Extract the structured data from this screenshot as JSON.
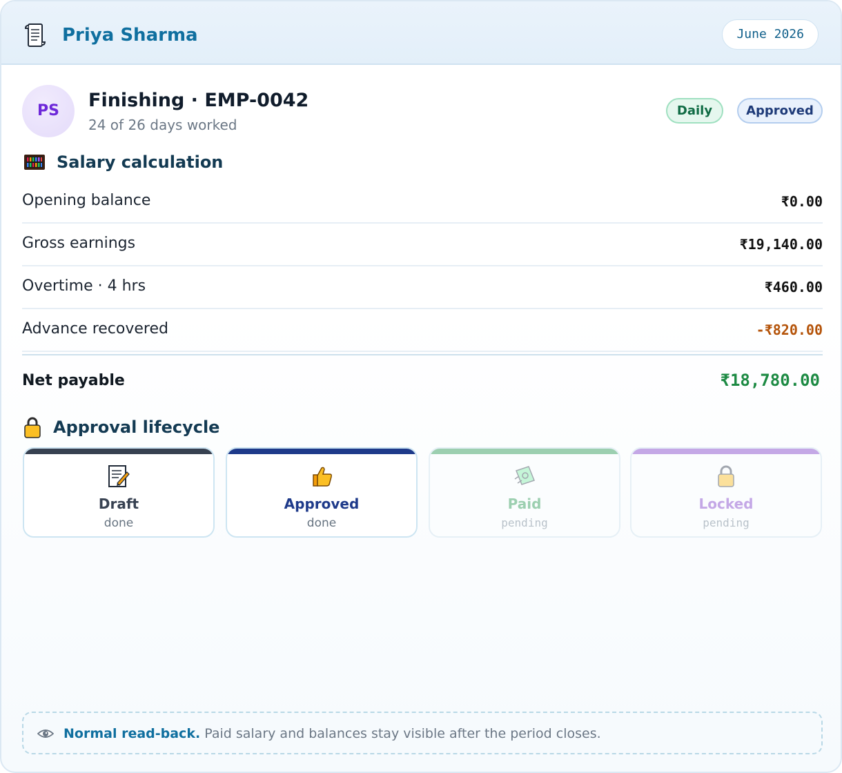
{
  "header": {
    "name": "Priya Sharma",
    "period": "June 2026",
    "icon": "scroll-icon"
  },
  "profile": {
    "initials": "PS",
    "title": "Finishing · EMP-0042",
    "subtitle": "24 of 26 days worked",
    "badges": {
      "daily": "Daily",
      "approved": "Approved"
    }
  },
  "salary": {
    "title": "Salary calculation",
    "icon": "abacus-icon",
    "rows": [
      {
        "label": "Opening balance",
        "value": "₹0.00"
      },
      {
        "label": "Gross earnings",
        "value": "₹19,140.00"
      },
      {
        "label": "Overtime · 4 hrs",
        "value": "₹460.00"
      },
      {
        "label": "Advance recovered",
        "value": "-₹820.00"
      }
    ],
    "net_label": "Net payable",
    "net_value": "₹18,780.00"
  },
  "lifecycle": {
    "title": "Approval lifecycle",
    "icon": "lock-icon",
    "stages": [
      {
        "label": "Draft",
        "status": "done",
        "icon": "memo-icon",
        "color": "#374151"
      },
      {
        "label": "Approved",
        "status": "done",
        "icon": "thumbs-up-icon",
        "color": "#1e3a8a"
      },
      {
        "label": "Paid",
        "status": "pending",
        "icon": "money-icon",
        "color": "#9ccfb0"
      },
      {
        "label": "Locked",
        "status": "pending",
        "icon": "lock-icon",
        "color": "#c4a8e6"
      }
    ]
  },
  "note": {
    "icon": "eye-icon",
    "strong": "Normal read-back.",
    "text": "Paid salary and balances stay visible after the period closes."
  }
}
